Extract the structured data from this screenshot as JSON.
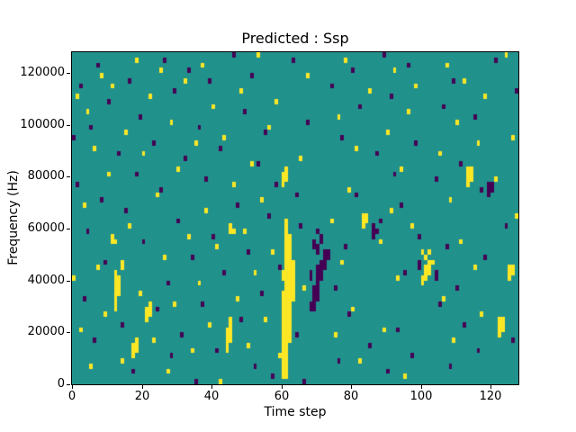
{
  "figure": {
    "title": "Predicted : Ssp",
    "xlabel": "Time step",
    "ylabel": "Frequency (Hz)"
  },
  "chart_data": {
    "type": "heatmap",
    "title": "Predicted : Ssp",
    "xlabel": "Time step",
    "ylabel": "Frequency (Hz)",
    "x_range": [
      0,
      128
    ],
    "y_range": [
      0,
      128000
    ],
    "x_ticks": [
      0,
      20,
      40,
      60,
      80,
      100,
      120
    ],
    "y_ticks": [
      0,
      20000,
      40000,
      60000,
      80000,
      100000,
      120000
    ],
    "grid": {
      "cols": 128,
      "rows": 64,
      "hz_per_row": 2000
    },
    "legend": "none",
    "colors": {
      "background": "#21918c",
      "high": "#fde725",
      "low": "#440154"
    },
    "value_meaning": {
      "background": "mid",
      "high": "yellow",
      "low": "dark-purple"
    },
    "cells_high": [
      [
        60,
        1
      ],
      [
        61,
        1
      ],
      [
        60,
        2
      ],
      [
        61,
        2
      ],
      [
        60,
        3
      ],
      [
        61,
        3
      ],
      [
        60,
        4
      ],
      [
        61,
        4
      ],
      [
        60,
        5
      ],
      [
        61,
        5
      ],
      [
        60,
        6
      ],
      [
        61,
        6
      ],
      [
        60,
        7
      ],
      [
        61,
        7
      ],
      [
        60,
        8
      ],
      [
        61,
        8
      ],
      [
        62,
        8
      ],
      [
        60,
        9
      ],
      [
        61,
        9
      ],
      [
        62,
        9
      ],
      [
        60,
        10
      ],
      [
        61,
        10
      ],
      [
        62,
        10
      ],
      [
        60,
        11
      ],
      [
        61,
        11
      ],
      [
        62,
        11
      ],
      [
        60,
        12
      ],
      [
        61,
        12
      ],
      [
        62,
        12
      ],
      [
        60,
        13
      ],
      [
        61,
        13
      ],
      [
        62,
        13
      ],
      [
        60,
        14
      ],
      [
        61,
        14
      ],
      [
        62,
        14
      ],
      [
        60,
        15
      ],
      [
        61,
        15
      ],
      [
        62,
        15
      ],
      [
        60,
        16
      ],
      [
        61,
        16
      ],
      [
        62,
        16
      ],
      [
        63,
        16
      ],
      [
        60,
        17
      ],
      [
        61,
        17
      ],
      [
        62,
        17
      ],
      [
        63,
        17
      ],
      [
        61,
        18
      ],
      [
        62,
        18
      ],
      [
        63,
        18
      ],
      [
        61,
        19
      ],
      [
        62,
        19
      ],
      [
        63,
        19
      ],
      [
        60,
        20
      ],
      [
        61,
        20
      ],
      [
        62,
        20
      ],
      [
        63,
        20
      ],
      [
        60,
        21
      ],
      [
        61,
        21
      ],
      [
        62,
        21
      ],
      [
        63,
        21
      ],
      [
        61,
        22
      ],
      [
        62,
        22
      ],
      [
        63,
        22
      ],
      [
        61,
        23
      ],
      [
        62,
        23
      ],
      [
        63,
        23
      ],
      [
        61,
        24
      ],
      [
        62,
        24
      ],
      [
        61,
        25
      ],
      [
        62,
        25
      ],
      [
        61,
        26
      ],
      [
        62,
        26
      ],
      [
        61,
        27
      ],
      [
        62,
        27
      ],
      [
        61,
        28
      ],
      [
        62,
        28
      ],
      [
        61,
        29
      ],
      [
        61,
        30
      ],
      [
        61,
        31
      ],
      [
        60,
        38
      ],
      [
        60,
        39
      ],
      [
        61,
        39
      ],
      [
        60,
        40
      ],
      [
        61,
        40
      ],
      [
        61,
        41
      ],
      [
        12,
        14
      ],
      [
        12,
        15
      ],
      [
        12,
        16
      ],
      [
        12,
        17
      ],
      [
        12,
        18
      ],
      [
        12,
        19
      ],
      [
        12,
        20
      ],
      [
        12,
        21
      ],
      [
        13,
        17
      ],
      [
        13,
        18
      ],
      [
        13,
        19
      ],
      [
        13,
        20
      ],
      [
        11,
        27
      ],
      [
        11,
        28
      ],
      [
        12,
        27
      ],
      [
        14,
        22
      ],
      [
        14,
        23
      ],
      [
        44,
        6
      ],
      [
        44,
        7
      ],
      [
        44,
        8
      ],
      [
        44,
        9
      ],
      [
        44,
        10
      ],
      [
        45,
        8
      ],
      [
        45,
        9
      ],
      [
        45,
        10
      ],
      [
        45,
        11
      ],
      [
        45,
        12
      ],
      [
        45,
        29
      ],
      [
        45,
        30
      ],
      [
        46,
        29
      ],
      [
        100,
        19
      ],
      [
        100,
        20
      ],
      [
        101,
        20
      ],
      [
        101,
        21
      ],
      [
        101,
        22
      ],
      [
        102,
        21
      ],
      [
        102,
        22
      ],
      [
        102,
        23
      ],
      [
        103,
        23
      ],
      [
        101,
        24
      ],
      [
        100,
        25
      ],
      [
        102,
        25
      ],
      [
        122,
        9
      ],
      [
        122,
        10
      ],
      [
        122,
        11
      ],
      [
        122,
        12
      ],
      [
        123,
        10
      ],
      [
        123,
        11
      ],
      [
        123,
        12
      ],
      [
        125,
        20
      ],
      [
        125,
        21
      ],
      [
        125,
        22
      ],
      [
        126,
        21
      ],
      [
        126,
        22
      ],
      [
        113,
        38
      ],
      [
        113,
        39
      ],
      [
        113,
        40
      ],
      [
        113,
        41
      ],
      [
        114,
        39
      ],
      [
        114,
        40
      ],
      [
        114,
        41
      ],
      [
        83,
        30
      ],
      [
        83,
        31
      ],
      [
        83,
        32
      ],
      [
        84,
        31
      ],
      [
        84,
        32
      ],
      [
        17,
        5
      ],
      [
        17,
        6
      ],
      [
        17,
        7
      ],
      [
        18,
        6
      ],
      [
        18,
        7
      ],
      [
        18,
        8
      ],
      [
        21,
        12
      ],
      [
        21,
        13
      ],
      [
        21,
        14
      ],
      [
        22,
        13
      ],
      [
        22,
        14
      ],
      [
        22,
        15
      ],
      [
        2,
        10
      ],
      [
        3,
        34
      ],
      [
        4,
        52
      ],
      [
        5,
        3
      ],
      [
        6,
        45
      ],
      [
        7,
        22
      ],
      [
        8,
        59
      ],
      [
        9,
        13
      ],
      [
        10,
        40
      ],
      [
        11,
        57
      ],
      [
        14,
        4
      ],
      [
        15,
        48
      ],
      [
        16,
        30
      ],
      [
        18,
        62
      ],
      [
        19,
        17
      ],
      [
        20,
        44
      ],
      [
        22,
        55
      ],
      [
        23,
        8
      ],
      [
        24,
        36
      ],
      [
        25,
        60
      ],
      [
        26,
        24
      ],
      [
        27,
        2
      ],
      [
        28,
        50
      ],
      [
        29,
        15
      ],
      [
        30,
        41
      ],
      [
        32,
        58
      ],
      [
        33,
        28
      ],
      [
        34,
        6
      ],
      [
        35,
        46
      ],
      [
        36,
        19
      ],
      [
        37,
        61
      ],
      [
        38,
        33
      ],
      [
        39,
        11
      ],
      [
        40,
        53
      ],
      [
        41,
        26
      ],
      [
        42,
        0
      ],
      [
        43,
        47
      ],
      [
        46,
        38
      ],
      [
        47,
        16
      ],
      [
        48,
        56
      ],
      [
        49,
        29
      ],
      [
        50,
        7
      ],
      [
        51,
        42
      ],
      [
        52,
        21
      ],
      [
        53,
        63
      ],
      [
        54,
        35
      ],
      [
        55,
        12
      ],
      [
        56,
        49
      ],
      [
        57,
        25
      ],
      [
        58,
        54
      ],
      [
        59,
        5
      ],
      [
        65,
        43
      ],
      [
        66,
        18
      ],
      [
        67,
        59
      ],
      [
        74,
        31
      ],
      [
        75,
        9
      ],
      [
        76,
        51
      ],
      [
        77,
        23
      ],
      [
        78,
        62
      ],
      [
        79,
        37
      ],
      [
        80,
        14
      ],
      [
        81,
        45
      ],
      [
        82,
        4
      ],
      [
        85,
        56
      ],
      [
        88,
        27
      ],
      [
        89,
        10
      ],
      [
        90,
        48
      ],
      [
        91,
        33
      ],
      [
        92,
        60
      ],
      [
        93,
        20
      ],
      [
        94,
        41
      ],
      [
        95,
        1
      ],
      [
        96,
        52
      ],
      [
        97,
        30
      ],
      [
        98,
        57
      ],
      [
        105,
        44
      ],
      [
        106,
        16
      ],
      [
        107,
        61
      ],
      [
        108,
        35
      ],
      [
        109,
        8
      ],
      [
        110,
        50
      ],
      [
        111,
        27
      ],
      [
        112,
        58
      ],
      [
        115,
        22
      ],
      [
        116,
        46
      ],
      [
        117,
        13
      ],
      [
        118,
        55
      ],
      [
        121,
        39
      ],
      [
        124,
        63
      ],
      [
        126,
        47
      ],
      [
        127,
        32
      ],
      [
        0,
        20
      ],
      [
        1,
        55
      ]
    ],
    "cells_low": [
      [
        68,
        14
      ],
      [
        68,
        15
      ],
      [
        68,
        20
      ],
      [
        68,
        21
      ],
      [
        69,
        14
      ],
      [
        69,
        15
      ],
      [
        69,
        16
      ],
      [
        69,
        17
      ],
      [
        69,
        18
      ],
      [
        69,
        26
      ],
      [
        69,
        27
      ],
      [
        70,
        16
      ],
      [
        70,
        17
      ],
      [
        70,
        18
      ],
      [
        70,
        19
      ],
      [
        70,
        20
      ],
      [
        70,
        21
      ],
      [
        70,
        22
      ],
      [
        70,
        25
      ],
      [
        70,
        26
      ],
      [
        70,
        29
      ],
      [
        71,
        20
      ],
      [
        71,
        21
      ],
      [
        71,
        22
      ],
      [
        71,
        23
      ],
      [
        71,
        27
      ],
      [
        71,
        28
      ],
      [
        72,
        22
      ],
      [
        72,
        23
      ],
      [
        72,
        24
      ],
      [
        72,
        25
      ],
      [
        73,
        24
      ],
      [
        73,
        25
      ],
      [
        119,
        36
      ],
      [
        119,
        37
      ],
      [
        119,
        38
      ],
      [
        120,
        37
      ],
      [
        120,
        38
      ],
      [
        99,
        22
      ],
      [
        99,
        23
      ],
      [
        104,
        20
      ],
      [
        104,
        21
      ],
      [
        86,
        28
      ],
      [
        86,
        29
      ],
      [
        86,
        30
      ],
      [
        87,
        29
      ],
      [
        1,
        38
      ],
      [
        2,
        57
      ],
      [
        3,
        16
      ],
      [
        4,
        29
      ],
      [
        5,
        49
      ],
      [
        6,
        8
      ],
      [
        7,
        61
      ],
      [
        8,
        35
      ],
      [
        9,
        23
      ],
      [
        10,
        54
      ],
      [
        13,
        44
      ],
      [
        14,
        11
      ],
      [
        15,
        33
      ],
      [
        16,
        58
      ],
      [
        17,
        2
      ],
      [
        18,
        40
      ],
      [
        19,
        51
      ],
      [
        20,
        27
      ],
      [
        23,
        46
      ],
      [
        24,
        14
      ],
      [
        25,
        37
      ],
      [
        26,
        62
      ],
      [
        27,
        19
      ],
      [
        28,
        5
      ],
      [
        29,
        56
      ],
      [
        30,
        31
      ],
      [
        31,
        9
      ],
      [
        32,
        43
      ],
      [
        33,
        60
      ],
      [
        34,
        24
      ],
      [
        35,
        0
      ],
      [
        36,
        49
      ],
      [
        37,
        15
      ],
      [
        38,
        39
      ],
      [
        39,
        58
      ],
      [
        40,
        28
      ],
      [
        41,
        6
      ],
      [
        42,
        45
      ],
      [
        43,
        21
      ],
      [
        46,
        63
      ],
      [
        47,
        34
      ],
      [
        48,
        12
      ],
      [
        49,
        52
      ],
      [
        50,
        25
      ],
      [
        51,
        59
      ],
      [
        52,
        3
      ],
      [
        53,
        42
      ],
      [
        54,
        17
      ],
      [
        55,
        48
      ],
      [
        56,
        32
      ],
      [
        57,
        1
      ],
      [
        58,
        38
      ],
      [
        59,
        22
      ],
      [
        63,
        62
      ],
      [
        64,
        9
      ],
      [
        64,
        36
      ],
      [
        65,
        30
      ],
      [
        66,
        0
      ],
      [
        67,
        50
      ],
      [
        74,
        57
      ],
      [
        75,
        18
      ],
      [
        76,
        4
      ],
      [
        77,
        47
      ],
      [
        78,
        26
      ],
      [
        79,
        13
      ],
      [
        80,
        60
      ],
      [
        81,
        36
      ],
      [
        82,
        53
      ],
      [
        85,
        7
      ],
      [
        87,
        44
      ],
      [
        88,
        31
      ],
      [
        89,
        63
      ],
      [
        90,
        2
      ],
      [
        91,
        55
      ],
      [
        92,
        40
      ],
      [
        93,
        10
      ],
      [
        94,
        34
      ],
      [
        95,
        21
      ],
      [
        96,
        61
      ],
      [
        97,
        5
      ],
      [
        98,
        46
      ],
      [
        99,
        28
      ],
      [
        104,
        39
      ],
      [
        105,
        15
      ],
      [
        106,
        53
      ],
      [
        107,
        26
      ],
      [
        108,
        3
      ],
      [
        109,
        58
      ],
      [
        110,
        18
      ],
      [
        111,
        42
      ],
      [
        112,
        11
      ],
      [
        115,
        51
      ],
      [
        116,
        6
      ],
      [
        117,
        37
      ],
      [
        118,
        24
      ],
      [
        121,
        62
      ],
      [
        124,
        30
      ],
      [
        126,
        8
      ],
      [
        127,
        56
      ],
      [
        0,
        47
      ]
    ]
  }
}
